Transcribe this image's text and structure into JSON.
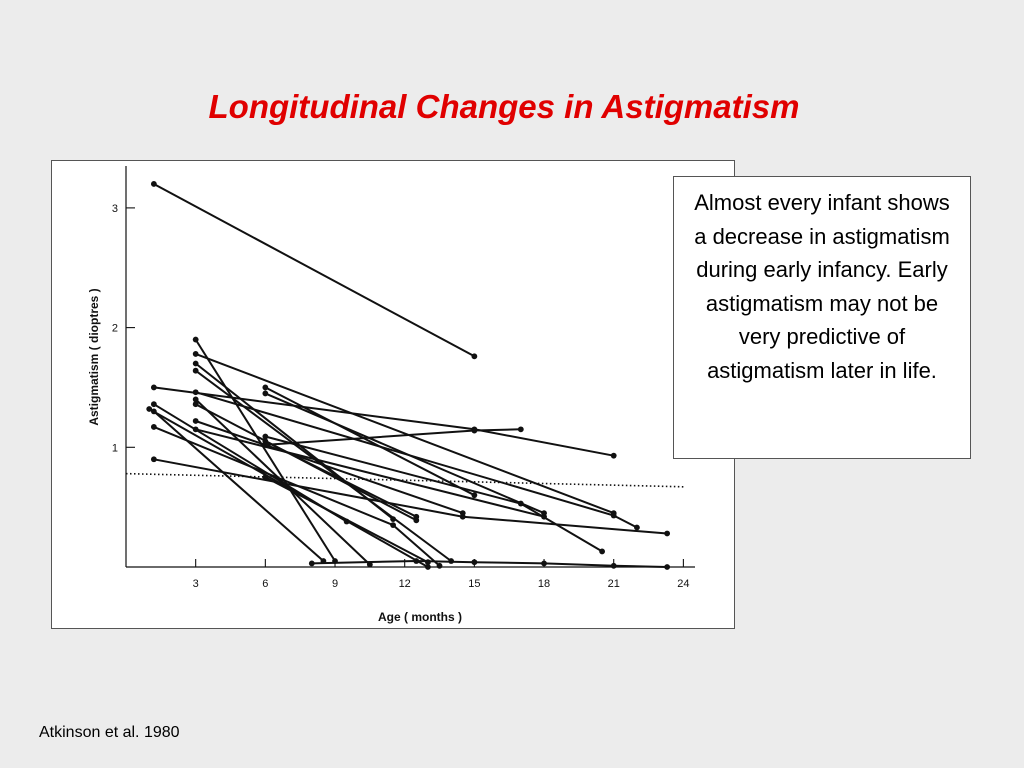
{
  "slide": {
    "title": "Longitudinal Changes in Astigmatism",
    "note": "Almost every infant shows a decrease in astigmatism during early infancy. Early astigmatism may not be very predictive of astigmatism later in life.",
    "citation": "Atkinson et al. 1980"
  },
  "chart_data": {
    "type": "line",
    "title": "",
    "xlabel": "Age ( months )",
    "ylabel": "Astigmatism ( dioptres )",
    "xlim": [
      0,
      24.5
    ],
    "ylim": [
      0,
      3.35
    ],
    "x_ticks": [
      3,
      6,
      9,
      12,
      15,
      18,
      21,
      24
    ],
    "y_ticks": [
      1,
      2,
      3
    ],
    "grid": false,
    "legend": "none",
    "reference_line": {
      "style": "dotted",
      "values": [
        [
          0,
          0.78
        ],
        [
          24,
          0.67
        ]
      ]
    },
    "series": [
      {
        "values": [
          [
            1.2,
            3.2
          ],
          [
            15,
            1.76
          ]
        ]
      },
      {
        "values": [
          [
            1.2,
            1.5
          ],
          [
            15,
            1.15
          ],
          [
            21,
            0.93
          ]
        ]
      },
      {
        "values": [
          [
            1.2,
            1.36
          ],
          [
            9.5,
            0.38
          ]
        ]
      },
      {
        "values": [
          [
            1.2,
            1.3
          ],
          [
            8.5,
            0.05
          ]
        ]
      },
      {
        "values": [
          [
            1.0,
            1.32
          ],
          [
            13,
            0.0
          ]
        ]
      },
      {
        "values": [
          [
            1.2,
            1.17
          ],
          [
            11.5,
            0.35
          ],
          [
            13.5,
            0.01
          ]
        ]
      },
      {
        "values": [
          [
            1.2,
            0.9
          ],
          [
            14.5,
            0.42
          ],
          [
            23.3,
            0.28
          ]
        ]
      },
      {
        "values": [
          [
            3,
            1.9
          ],
          [
            9,
            0.05
          ]
        ]
      },
      {
        "values": [
          [
            3,
            1.78
          ],
          [
            21,
            0.45
          ]
        ]
      },
      {
        "values": [
          [
            3,
            1.7
          ],
          [
            11.5,
            0.4
          ]
        ]
      },
      {
        "values": [
          [
            3,
            1.64
          ],
          [
            14,
            0.05
          ]
        ]
      },
      {
        "values": [
          [
            3,
            1.46
          ],
          [
            21,
            0.43
          ],
          [
            22,
            0.33
          ]
        ]
      },
      {
        "values": [
          [
            3,
            1.4
          ],
          [
            10.5,
            0.02
          ]
        ]
      },
      {
        "values": [
          [
            3,
            1.36
          ],
          [
            12.5,
            0.39
          ]
        ]
      },
      {
        "values": [
          [
            3,
            1.22
          ],
          [
            14.5,
            0.45
          ]
        ]
      },
      {
        "values": [
          [
            3,
            1.15
          ],
          [
            18,
            0.42
          ]
        ]
      },
      {
        "values": [
          [
            6,
            1.5
          ],
          [
            15,
            0.6
          ]
        ]
      },
      {
        "values": [
          [
            6,
            1.45
          ],
          [
            18,
            0.45
          ]
        ]
      },
      {
        "values": [
          [
            6,
            1.09
          ],
          [
            17,
            0.53
          ],
          [
            20.5,
            0.13
          ]
        ]
      },
      {
        "values": [
          [
            6,
            1.05
          ],
          [
            12.5,
            0.42
          ]
        ]
      },
      {
        "values": [
          [
            6,
            0.75
          ],
          [
            13,
            0.04
          ]
        ]
      },
      {
        "values": [
          [
            6,
            1.02
          ],
          [
            15,
            1.14
          ],
          [
            17,
            1.15
          ]
        ]
      },
      {
        "values": [
          [
            8,
            0.03
          ],
          [
            12.5,
            0.05
          ],
          [
            15,
            0.04
          ],
          [
            18,
            0.03
          ],
          [
            21,
            0.01
          ],
          [
            23.3,
            0.0
          ]
        ]
      }
    ]
  }
}
